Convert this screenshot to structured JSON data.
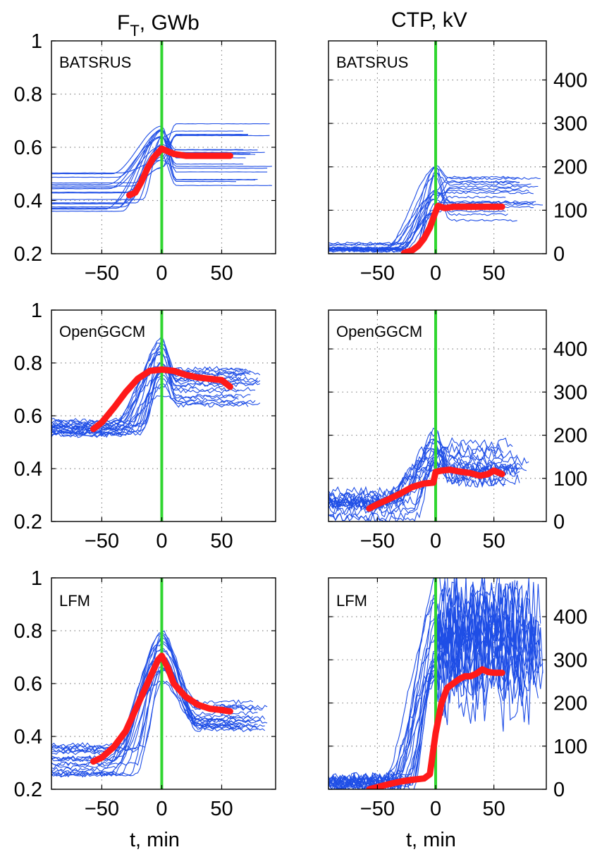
{
  "column_titles": {
    "left_main": "F",
    "left_sub": "T",
    "left_rest": ", GWb",
    "right": "CTP, kV"
  },
  "xlabel": "t, min",
  "chart_data": [
    {
      "type": "line",
      "model": "BATSRUS",
      "quantity": "F_T, GWb",
      "xlim": [
        -92,
        95
      ],
      "ylim": [
        0.2,
        1.0
      ],
      "xticks": [
        -50,
        0,
        50
      ],
      "yticks": [
        0.2,
        0.4,
        0.6,
        0.8,
        1.0
      ],
      "ytick_labels": [
        "0.2",
        "0.4",
        "0.6",
        "0.8",
        "1"
      ],
      "yaxis_side": "left",
      "grid": true,
      "vline_x": 0,
      "vline_color": "#2fd62f",
      "mean_line": {
        "color": "#ff1a1a",
        "points": [
          [
            -27,
            0.42
          ],
          [
            -22,
            0.43
          ],
          [
            -17,
            0.47
          ],
          [
            -12,
            0.52
          ],
          [
            -7,
            0.56
          ],
          [
            -3,
            0.58
          ],
          [
            0,
            0.595
          ],
          [
            5,
            0.585
          ],
          [
            10,
            0.575
          ],
          [
            20,
            0.568
          ],
          [
            35,
            0.568
          ],
          [
            57,
            0.568
          ]
        ]
      },
      "individual_runs": {
        "color": "#1f4ee6",
        "count": 20,
        "start_range": [
          0.35,
          0.52
        ],
        "peak_range": [
          0.52,
          0.7
        ],
        "end_range": [
          0.45,
          0.69
        ],
        "end_x_range": [
          60,
          95
        ]
      }
    },
    {
      "type": "line",
      "model": "BATSRUS",
      "quantity": "CTP, kV",
      "xlim": [
        -92,
        95
      ],
      "ylim": [
        0,
        490
      ],
      "xticks": [
        -50,
        0,
        50
      ],
      "yticks": [
        0,
        100,
        200,
        300,
        400
      ],
      "ytick_labels": [
        "0",
        "100",
        "200",
        "300",
        "400"
      ],
      "yaxis_side": "right",
      "grid": true,
      "vline_x": 0,
      "vline_color": "#2fd62f",
      "mean_line": {
        "color": "#ff1a1a",
        "points": [
          [
            -27,
            2
          ],
          [
            -20,
            8
          ],
          [
            -15,
            18
          ],
          [
            -10,
            35
          ],
          [
            -5,
            60
          ],
          [
            -1,
            90
          ],
          [
            2,
            110
          ],
          [
            8,
            105
          ],
          [
            15,
            108
          ],
          [
            30,
            108
          ],
          [
            57,
            108
          ]
        ]
      },
      "individual_runs": {
        "color": "#1f4ee6",
        "count": 18,
        "start_range": [
          5,
          25
        ],
        "peak_range": [
          90,
          210
        ],
        "end_range": [
          60,
          195
        ],
        "end_x_range": [
          60,
          95
        ]
      }
    },
    {
      "type": "line",
      "model": "OpenGGCM",
      "quantity": "F_T, GWb",
      "xlim": [
        -92,
        95
      ],
      "ylim": [
        0.2,
        1.0
      ],
      "xticks": [
        -50,
        0,
        50
      ],
      "yticks": [
        0.2,
        0.4,
        0.6,
        0.8,
        1.0
      ],
      "ytick_labels": [
        "0.2",
        "0.4",
        "0.6",
        "0.8",
        "1"
      ],
      "yaxis_side": "left",
      "grid": true,
      "vline_x": 0,
      "vline_color": "#2fd62f",
      "mean_line": {
        "color": "#ff1a1a",
        "points": [
          [
            -57,
            0.55
          ],
          [
            -50,
            0.575
          ],
          [
            -40,
            0.63
          ],
          [
            -30,
            0.69
          ],
          [
            -20,
            0.74
          ],
          [
            -10,
            0.77
          ],
          [
            0,
            0.775
          ],
          [
            10,
            0.77
          ],
          [
            20,
            0.755
          ],
          [
            30,
            0.745
          ],
          [
            40,
            0.74
          ],
          [
            50,
            0.735
          ],
          [
            57,
            0.71
          ]
        ]
      },
      "individual_runs": {
        "color": "#1f4ee6",
        "count": 20,
        "start_range": [
          0.52,
          0.59
        ],
        "peak_range": [
          0.68,
          0.9
        ],
        "end_range": [
          0.62,
          0.78
        ],
        "end_x_range": [
          60,
          85
        ]
      }
    },
    {
      "type": "line",
      "model": "OpenGGCM",
      "quantity": "CTP, kV",
      "xlim": [
        -92,
        95
      ],
      "ylim": [
        0,
        490
      ],
      "xticks": [
        -50,
        0,
        50
      ],
      "yticks": [
        0,
        100,
        200,
        300,
        400
      ],
      "ytick_labels": [
        "0",
        "100",
        "200",
        "300",
        "400"
      ],
      "yaxis_side": "right",
      "grid": true,
      "vline_x": 0,
      "vline_color": "#2fd62f",
      "mean_line": {
        "color": "#ff1a1a",
        "points": [
          [
            -57,
            30
          ],
          [
            -50,
            40
          ],
          [
            -40,
            52
          ],
          [
            -30,
            65
          ],
          [
            -20,
            80
          ],
          [
            -10,
            88
          ],
          [
            -2,
            90
          ],
          [
            0,
            115
          ],
          [
            5,
            118
          ],
          [
            12,
            120
          ],
          [
            20,
            116
          ],
          [
            30,
            112
          ],
          [
            38,
            106
          ],
          [
            45,
            110
          ],
          [
            50,
            118
          ],
          [
            57,
            110
          ]
        ]
      },
      "individual_runs": {
        "color": "#1f4ee6",
        "count": 18,
        "start_range": [
          10,
          70
        ],
        "peak_range": [
          120,
          215
        ],
        "end_range": [
          90,
          185
        ],
        "end_x_range": [
          55,
          82
        ]
      }
    },
    {
      "type": "line",
      "model": "LFM",
      "quantity": "F_T, GWb",
      "xlim": [
        -92,
        95
      ],
      "ylim": [
        0.2,
        1.0
      ],
      "xticks": [
        -50,
        0,
        50
      ],
      "yticks": [
        0.2,
        0.4,
        0.6,
        0.8,
        1.0
      ],
      "ytick_labels": [
        "0.2",
        "0.4",
        "0.6",
        "0.8",
        "1"
      ],
      "yaxis_side": "left",
      "grid": true,
      "vline_x": 0,
      "vline_color": "#2fd62f",
      "mean_line": {
        "color": "#ff1a1a",
        "points": [
          [
            -57,
            0.305
          ],
          [
            -50,
            0.32
          ],
          [
            -40,
            0.36
          ],
          [
            -30,
            0.42
          ],
          [
            -20,
            0.52
          ],
          [
            -10,
            0.62
          ],
          [
            -3,
            0.69
          ],
          [
            0,
            0.705
          ],
          [
            5,
            0.66
          ],
          [
            10,
            0.6
          ],
          [
            20,
            0.55
          ],
          [
            30,
            0.52
          ],
          [
            40,
            0.505
          ],
          [
            50,
            0.5
          ],
          [
            57,
            0.495
          ]
        ]
      },
      "individual_runs": {
        "color": "#1f4ee6",
        "count": 20,
        "start_range": [
          0.25,
          0.37
        ],
        "peak_range": [
          0.6,
          0.8
        ],
        "end_range": [
          0.42,
          0.55
        ],
        "end_x_range": [
          60,
          95
        ]
      }
    },
    {
      "type": "line",
      "model": "LFM",
      "quantity": "CTP, kV",
      "xlim": [
        -92,
        95
      ],
      "ylim": [
        0,
        490
      ],
      "xticks": [
        -50,
        0,
        50
      ],
      "yticks": [
        0,
        100,
        200,
        300,
        400
      ],
      "ytick_labels": [
        "0",
        "100",
        "200",
        "300",
        "400"
      ],
      "yaxis_side": "right",
      "grid": true,
      "vline_x": 0,
      "vline_color": "#2fd62f",
      "mean_line": {
        "color": "#ff1a1a",
        "points": [
          [
            -57,
            0
          ],
          [
            -50,
            5
          ],
          [
            -40,
            12
          ],
          [
            -30,
            18
          ],
          [
            -20,
            22
          ],
          [
            -10,
            25
          ],
          [
            -5,
            35
          ],
          [
            0,
            130
          ],
          [
            5,
            200
          ],
          [
            10,
            235
          ],
          [
            15,
            245
          ],
          [
            20,
            255
          ],
          [
            25,
            262
          ],
          [
            30,
            262
          ],
          [
            35,
            268
          ],
          [
            40,
            278
          ],
          [
            45,
            272
          ],
          [
            50,
            270
          ],
          [
            57,
            270
          ]
        ]
      },
      "individual_runs": {
        "color": "#1f4ee6",
        "count": 20,
        "start_range": [
          0,
          30
        ],
        "peak_range": [
          250,
          490
        ],
        "end_range": [
          200,
          420
        ],
        "end_x_range": [
          60,
          95
        ]
      }
    }
  ]
}
